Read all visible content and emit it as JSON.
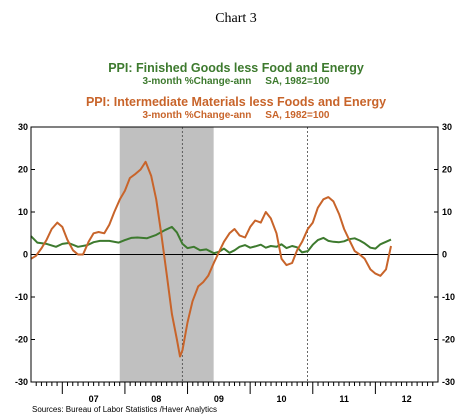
{
  "chart_data": {
    "type": "line",
    "title": "Chart 3",
    "series_titles": [
      {
        "name": "PPI: Finished Goods less Food and Energy",
        "subtitle": "3-month %Change-ann     SA, 1982=100",
        "color": "#3d7a2e"
      },
      {
        "name": "PPI: Intermediate Materials less Foods and Energy",
        "subtitle": "3-month %Change-ann     SA, 1982=100",
        "color": "#c8642a"
      }
    ],
    "xlabel": "",
    "ylabel": "",
    "xlim": [
      2006.5,
      2013.0
    ],
    "ylim": [
      -30,
      30
    ],
    "yticks": [
      30,
      20,
      10,
      0,
      -10,
      -20,
      -30
    ],
    "year_labels": [
      {
        "label": "07",
        "x": 2007.0
      },
      {
        "label": "08",
        "x": 2008.0
      },
      {
        "label": "09",
        "x": 2009.0
      },
      {
        "label": "10",
        "x": 2010.0
      },
      {
        "label": "11",
        "x": 2011.0
      },
      {
        "label": "12",
        "x": 2012.0
      }
    ],
    "recession_band": {
      "from": 2007.917,
      "to": 2009.417,
      "color": "#c0c0c0"
    },
    "vertical_dashed_lines": [
      2008.917,
      2010.917
    ],
    "source": "Sources:  Bureau of Labor Statistics /Haver Analytics",
    "series": [
      {
        "name": "PPI: Finished Goods less Food and Energy",
        "color": "#3d7a2e",
        "points": [
          [
            2006.5,
            4.3
          ],
          [
            2006.6,
            2.8
          ],
          [
            2006.75,
            2.5
          ],
          [
            2006.9,
            1.8
          ],
          [
            2007.0,
            2.5
          ],
          [
            2007.1,
            2.7
          ],
          [
            2007.25,
            1.8
          ],
          [
            2007.4,
            2.2
          ],
          [
            2007.5,
            2.9
          ],
          [
            2007.6,
            3.2
          ],
          [
            2007.75,
            3.2
          ],
          [
            2007.9,
            2.8
          ],
          [
            2008.0,
            3.4
          ],
          [
            2008.1,
            3.9
          ],
          [
            2008.2,
            4.0
          ],
          [
            2008.35,
            3.8
          ],
          [
            2008.5,
            4.6
          ],
          [
            2008.65,
            5.8
          ],
          [
            2008.75,
            6.5
          ],
          [
            2008.83,
            5.2
          ],
          [
            2008.92,
            2.5
          ],
          [
            2009.0,
            1.5
          ],
          [
            2009.1,
            1.8
          ],
          [
            2009.2,
            1.0
          ],
          [
            2009.3,
            1.2
          ],
          [
            2009.42,
            0.3
          ],
          [
            2009.5,
            0.6
          ],
          [
            2009.58,
            1.4
          ],
          [
            2009.67,
            0.4
          ],
          [
            2009.75,
            1.0
          ],
          [
            2009.83,
            1.8
          ],
          [
            2009.92,
            2.2
          ],
          [
            2010.0,
            1.6
          ],
          [
            2010.08,
            1.9
          ],
          [
            2010.17,
            2.3
          ],
          [
            2010.25,
            1.6
          ],
          [
            2010.33,
            2.0
          ],
          [
            2010.42,
            1.8
          ],
          [
            2010.5,
            2.4
          ],
          [
            2010.58,
            1.5
          ],
          [
            2010.67,
            2.0
          ],
          [
            2010.75,
            1.7
          ],
          [
            2010.83,
            0.5
          ],
          [
            2010.92,
            0.8
          ],
          [
            2011.0,
            2.3
          ],
          [
            2011.08,
            3.4
          ],
          [
            2011.17,
            3.9
          ],
          [
            2011.25,
            3.2
          ],
          [
            2011.33,
            3.0
          ],
          [
            2011.42,
            2.9
          ],
          [
            2011.5,
            3.1
          ],
          [
            2011.58,
            3.6
          ],
          [
            2011.67,
            3.8
          ],
          [
            2011.75,
            3.3
          ],
          [
            2011.83,
            2.6
          ],
          [
            2011.92,
            1.6
          ],
          [
            2012.0,
            1.4
          ],
          [
            2012.08,
            2.4
          ],
          [
            2012.17,
            3.0
          ],
          [
            2012.25,
            3.5
          ]
        ]
      },
      {
        "name": "PPI: Intermediate Materials less Foods and Energy",
        "color": "#c8642a",
        "points": [
          [
            2006.5,
            -1.0
          ],
          [
            2006.58,
            -0.3
          ],
          [
            2006.67,
            1.5
          ],
          [
            2006.75,
            3.5
          ],
          [
            2006.83,
            6.0
          ],
          [
            2006.92,
            7.5
          ],
          [
            2007.0,
            6.5
          ],
          [
            2007.08,
            3.5
          ],
          [
            2007.17,
            1.0
          ],
          [
            2007.25,
            0.0
          ],
          [
            2007.33,
            0.0
          ],
          [
            2007.42,
            3.0
          ],
          [
            2007.5,
            5.0
          ],
          [
            2007.58,
            5.3
          ],
          [
            2007.67,
            5.0
          ],
          [
            2007.75,
            7.0
          ],
          [
            2007.83,
            10.0
          ],
          [
            2007.92,
            13.0
          ],
          [
            2008.0,
            15.0
          ],
          [
            2008.08,
            18.0
          ],
          [
            2008.17,
            19.0
          ],
          [
            2008.25,
            20.0
          ],
          [
            2008.33,
            21.8
          ],
          [
            2008.42,
            18.5
          ],
          [
            2008.5,
            13.0
          ],
          [
            2008.58,
            5.0
          ],
          [
            2008.67,
            -5.0
          ],
          [
            2008.75,
            -14.0
          ],
          [
            2008.83,
            -20.0
          ],
          [
            2008.88,
            -24.0
          ],
          [
            2008.92,
            -22.5
          ],
          [
            2009.0,
            -16.0
          ],
          [
            2009.08,
            -11.0
          ],
          [
            2009.17,
            -7.5
          ],
          [
            2009.25,
            -6.5
          ],
          [
            2009.33,
            -5.0
          ],
          [
            2009.42,
            -2.0
          ],
          [
            2009.5,
            0.5
          ],
          [
            2009.58,
            3.0
          ],
          [
            2009.67,
            5.0
          ],
          [
            2009.75,
            6.0
          ],
          [
            2009.83,
            4.5
          ],
          [
            2009.92,
            4.0
          ],
          [
            2010.0,
            6.5
          ],
          [
            2010.08,
            8.0
          ],
          [
            2010.17,
            7.5
          ],
          [
            2010.25,
            10.0
          ],
          [
            2010.33,
            8.5
          ],
          [
            2010.42,
            5.0
          ],
          [
            2010.5,
            -1.0
          ],
          [
            2010.58,
            -2.5
          ],
          [
            2010.67,
            -2.0
          ],
          [
            2010.75,
            1.0
          ],
          [
            2010.83,
            3.0
          ],
          [
            2010.92,
            6.0
          ],
          [
            2011.0,
            7.5
          ],
          [
            2011.08,
            11.0
          ],
          [
            2011.17,
            13.0
          ],
          [
            2011.25,
            13.5
          ],
          [
            2011.33,
            12.5
          ],
          [
            2011.42,
            9.5
          ],
          [
            2011.5,
            6.0
          ],
          [
            2011.58,
            3.5
          ],
          [
            2011.67,
            0.8
          ],
          [
            2011.75,
            0.0
          ],
          [
            2011.83,
            -1.0
          ],
          [
            2011.92,
            -3.5
          ],
          [
            2012.0,
            -4.5
          ],
          [
            2012.08,
            -5.0
          ],
          [
            2012.17,
            -3.5
          ],
          [
            2012.25,
            2.0
          ]
        ]
      }
    ]
  }
}
